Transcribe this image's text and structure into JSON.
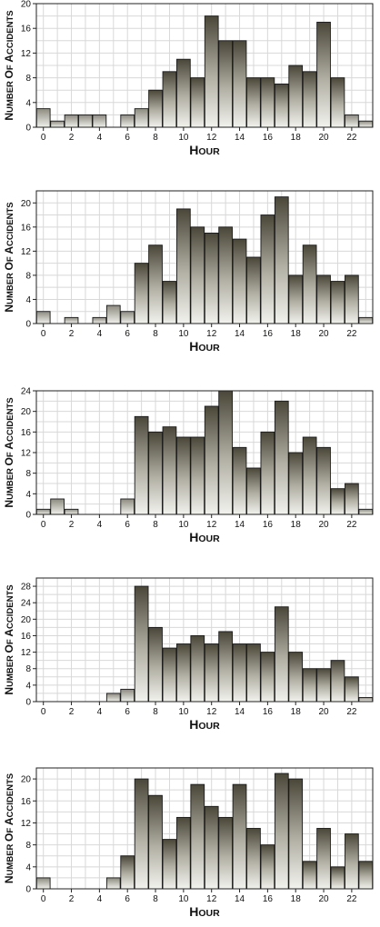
{
  "chart_data": [
    {
      "type": "bar",
      "xlabel": "Hour",
      "ylabel": "Number of accidents",
      "xlim": [
        -0.5,
        23.5
      ],
      "ylim": [
        0,
        20
      ],
      "yticks": [
        0,
        4,
        8,
        12,
        16,
        20
      ],
      "xticks": [
        0,
        2,
        4,
        6,
        8,
        10,
        12,
        14,
        16,
        18,
        20,
        22
      ],
      "grid": true,
      "x": [
        0,
        1,
        2,
        3,
        4,
        5,
        6,
        7,
        8,
        9,
        10,
        11,
        12,
        13,
        14,
        15,
        16,
        17,
        18,
        19,
        20,
        21,
        22,
        23
      ],
      "values": [
        3,
        1,
        2,
        2,
        2,
        0,
        2,
        3,
        6,
        9,
        11,
        8,
        18,
        14,
        14,
        8,
        8,
        7,
        10,
        9,
        17,
        8,
        2,
        1
      ]
    },
    {
      "type": "bar",
      "xlabel": "Hour",
      "ylabel": "Number of accidents",
      "xlim": [
        -0.5,
        23.5
      ],
      "ylim": [
        0,
        22
      ],
      "yticks": [
        0,
        4,
        8,
        12,
        16,
        20
      ],
      "xticks": [
        0,
        2,
        4,
        6,
        8,
        10,
        12,
        14,
        16,
        18,
        20,
        22
      ],
      "grid": true,
      "x": [
        0,
        1,
        2,
        3,
        4,
        5,
        6,
        7,
        8,
        9,
        10,
        11,
        12,
        13,
        14,
        15,
        16,
        17,
        18,
        19,
        20,
        21,
        22,
        23
      ],
      "values": [
        2,
        0,
        1,
        0,
        1,
        3,
        2,
        10,
        13,
        7,
        19,
        16,
        15,
        16,
        14,
        11,
        18,
        21,
        8,
        13,
        8,
        7,
        8,
        1
      ]
    },
    {
      "type": "bar",
      "xlabel": "Hour",
      "ylabel": "Number of accidents",
      "xlim": [
        -0.5,
        23.5
      ],
      "ylim": [
        0,
        24
      ],
      "yticks": [
        0,
        4,
        8,
        12,
        16,
        20,
        24
      ],
      "xticks": [
        0,
        2,
        4,
        6,
        8,
        10,
        12,
        14,
        16,
        18,
        20,
        22
      ],
      "grid": true,
      "x": [
        0,
        1,
        2,
        3,
        4,
        5,
        6,
        7,
        8,
        9,
        10,
        11,
        12,
        13,
        14,
        15,
        16,
        17,
        18,
        19,
        20,
        21,
        22,
        23
      ],
      "values": [
        1,
        3,
        1,
        0,
        0,
        0,
        3,
        19,
        16,
        17,
        15,
        15,
        21,
        24,
        13,
        9,
        16,
        22,
        12,
        15,
        13,
        5,
        6,
        1
      ]
    },
    {
      "type": "bar",
      "xlabel": "Hour",
      "ylabel": "Number of accidents",
      "xlim": [
        -0.5,
        23.5
      ],
      "ylim": [
        0,
        30
      ],
      "yticks": [
        0,
        4,
        8,
        12,
        16,
        20,
        24,
        28
      ],
      "xticks": [
        0,
        2,
        4,
        6,
        8,
        10,
        12,
        14,
        16,
        18,
        20,
        22
      ],
      "grid": true,
      "x": [
        0,
        1,
        2,
        3,
        4,
        5,
        6,
        7,
        8,
        9,
        10,
        11,
        12,
        13,
        14,
        15,
        16,
        17,
        18,
        19,
        20,
        21,
        22,
        23
      ],
      "values": [
        0,
        0,
        0,
        0,
        0,
        2,
        3,
        28,
        18,
        13,
        14,
        16,
        14,
        17,
        14,
        14,
        12,
        23,
        12,
        8,
        8,
        10,
        6,
        1
      ]
    },
    {
      "type": "bar",
      "xlabel": "Hour",
      "ylabel": "Number of accidents",
      "xlim": [
        -0.5,
        23.5
      ],
      "ylim": [
        0,
        22
      ],
      "yticks": [
        0,
        4,
        8,
        12,
        16,
        20
      ],
      "xticks": [
        0,
        2,
        4,
        6,
        8,
        10,
        12,
        14,
        16,
        18,
        20,
        22
      ],
      "grid": true,
      "x": [
        0,
        1,
        2,
        3,
        4,
        5,
        6,
        7,
        8,
        9,
        10,
        11,
        12,
        13,
        14,
        15,
        16,
        17,
        18,
        19,
        20,
        21,
        22,
        23
      ],
      "values": [
        2,
        0,
        0,
        0,
        0,
        2,
        6,
        20,
        17,
        9,
        13,
        19,
        15,
        13,
        19,
        11,
        8,
        21,
        20,
        5,
        11,
        4,
        10,
        5
      ]
    }
  ]
}
